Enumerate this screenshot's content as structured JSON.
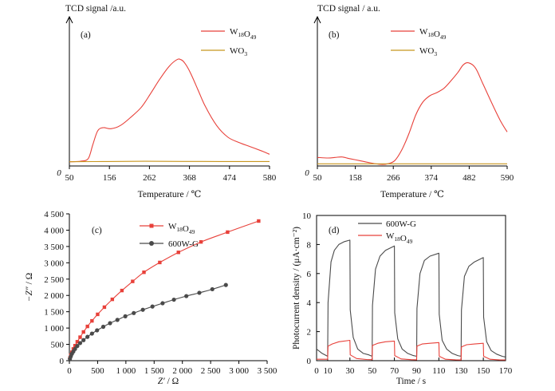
{
  "chart_data": [
    {
      "panel": "(a)",
      "type": "line",
      "y_axis_title": "TCD signal /a.u.",
      "xlabel": "Temperature / ℃",
      "y_origin_label": "0",
      "x_ticks": [
        "50",
        "156",
        "262",
        "368",
        "474",
        "580"
      ],
      "xlim": [
        50,
        580
      ],
      "ylim": [
        0,
        1
      ],
      "y_values_note": "relative",
      "legend": [
        {
          "base": "W",
          "sub1": "18",
          "mid": "O",
          "sub2": "49"
        },
        {
          "base": "WO",
          "sub1": "3",
          "mid": "",
          "sub2": ""
        }
      ],
      "colors": [
        "#e8413a",
        "#c8961e"
      ],
      "series": [
        {
          "name": "W18O49",
          "x": [
            50,
            80,
            100,
            112,
            125,
            140,
            160,
            185,
            210,
            240,
            265,
            290,
            315,
            335,
            345,
            355,
            370,
            390,
            410,
            440,
            470,
            500,
            530,
            560,
            580
          ],
          "y": [
            0.04,
            0.045,
            0.07,
            0.2,
            0.33,
            0.36,
            0.35,
            0.38,
            0.45,
            0.55,
            0.68,
            0.82,
            0.94,
            1.0,
            1.0,
            0.97,
            0.88,
            0.72,
            0.56,
            0.38,
            0.27,
            0.22,
            0.18,
            0.14,
            0.11
          ]
        },
        {
          "name": "WO3",
          "x": [
            50,
            150,
            250,
            350,
            450,
            580
          ],
          "y": [
            0.04,
            0.042,
            0.044,
            0.043,
            0.042,
            0.042
          ]
        }
      ]
    },
    {
      "panel": "(b)",
      "type": "line",
      "y_axis_title": "TCD signal / a.u.",
      "xlabel": "Temperature / ℃",
      "y_origin_label": "0",
      "x_ticks": [
        "50",
        "158",
        "266",
        "374",
        "482",
        "590"
      ],
      "xlim": [
        50,
        590
      ],
      "ylim": [
        0,
        1
      ],
      "y_values_note": "relative",
      "legend": [
        {
          "base": "W",
          "sub1": "18",
          "mid": "O",
          "sub2": "49"
        },
        {
          "base": "WO",
          "sub1": "3",
          "mid": "",
          "sub2": ""
        }
      ],
      "colors": [
        "#e8413a",
        "#c8961e"
      ],
      "series": [
        {
          "name": "W18O49",
          "x": [
            50,
            80,
            100,
            120,
            140,
            170,
            200,
            230,
            250,
            270,
            290,
            310,
            330,
            350,
            370,
            390,
            410,
            430,
            450,
            465,
            480,
            500,
            520,
            545,
            570,
            590
          ],
          "y": [
            0.08,
            0.075,
            0.08,
            0.085,
            0.07,
            0.05,
            0.03,
            0.015,
            0.02,
            0.05,
            0.15,
            0.3,
            0.48,
            0.6,
            0.66,
            0.69,
            0.73,
            0.8,
            0.88,
            0.95,
            0.97,
            0.92,
            0.78,
            0.6,
            0.43,
            0.32
          ]
        },
        {
          "name": "WO3",
          "x": [
            50,
            150,
            250,
            350,
            450,
            590
          ],
          "y": [
            0.02,
            0.02,
            0.02,
            0.02,
            0.02,
            0.02
          ]
        }
      ]
    },
    {
      "panel": "(c)",
      "type": "scatter",
      "ylabel_prefix": "−Z″",
      "ylabel_suffix": " / Ω",
      "xlabel_prefix": "Z′",
      "xlabel_suffix": " / Ω",
      "x_ticks": [
        "0",
        "500",
        "1 000",
        "1 500",
        "2 000",
        "2 500",
        "3 000",
        "3 500"
      ],
      "x_tick_values": [
        0,
        500,
        1000,
        1500,
        2000,
        2500,
        3000,
        3500
      ],
      "y_ticks": [
        "0",
        "500",
        "1 000",
        "1 500",
        "2 000",
        "2 500",
        "3 000",
        "3 500",
        "4 000",
        "4 500"
      ],
      "y_tick_values": [
        0,
        500,
        1000,
        1500,
        2000,
        2500,
        3000,
        3500,
        4000,
        4500
      ],
      "xlim": [
        0,
        3500
      ],
      "ylim": [
        0,
        4500
      ],
      "legend": [
        {
          "base": "W",
          "sub1": "18",
          "mid": "O",
          "sub2": "49"
        },
        {
          "base": "600W-G",
          "sub1": "",
          "mid": "",
          "sub2": ""
        }
      ],
      "colors": [
        "#e8413a",
        "#4a4a4a"
      ],
      "series": [
        {
          "name": "W18O49",
          "marker": "square",
          "x": [
            10,
            25,
            45,
            70,
            100,
            140,
            190,
            250,
            320,
            400,
            500,
            620,
            760,
            930,
            1120,
            1320,
            1600,
            1930,
            2330,
            2800,
            3350
          ],
          "y": [
            80,
            170,
            260,
            360,
            460,
            580,
            720,
            880,
            1050,
            1220,
            1420,
            1640,
            1880,
            2150,
            2430,
            2710,
            3010,
            3320,
            3640,
            3940,
            4280
          ]
        },
        {
          "name": "600W-G",
          "marker": "circle",
          "x": [
            10,
            25,
            45,
            70,
            100,
            140,
            190,
            250,
            320,
            400,
            490,
            600,
            720,
            850,
            990,
            1140,
            1300,
            1470,
            1650,
            1850,
            2070,
            2300,
            2530,
            2770
          ],
          "y": [
            60,
            130,
            210,
            280,
            360,
            450,
            540,
            630,
            730,
            830,
            930,
            1040,
            1150,
            1250,
            1360,
            1460,
            1560,
            1660,
            1760,
            1870,
            1980,
            2080,
            2190,
            2320
          ]
        }
      ]
    },
    {
      "panel": "(d)",
      "type": "line",
      "ylabel": "Photocurrent density / (μA·cm⁻²)",
      "xlabel": "Time / s",
      "x_ticks": [
        "0",
        "10",
        "30",
        "50",
        "70",
        "90",
        "110",
        "130",
        "150",
        "170"
      ],
      "x_tick_values": [
        0,
        10,
        30,
        50,
        70,
        90,
        110,
        130,
        150,
        170
      ],
      "y_ticks": [
        "0",
        "2",
        "4",
        "6",
        "8",
        "10"
      ],
      "y_tick_values": [
        0,
        2,
        4,
        6,
        8,
        10
      ],
      "xlim": [
        0,
        170
      ],
      "ylim": [
        0,
        10
      ],
      "legend": [
        {
          "base": "600W-G",
          "sub1": "",
          "mid": "",
          "sub2": ""
        },
        {
          "base": "W",
          "sub1": "18",
          "mid": "O",
          "sub2": "49"
        }
      ],
      "colors": [
        "#4a4a4a",
        "#e8413a"
      ],
      "series": [
        {
          "name": "600W-G",
          "x": [
            0,
            5,
            10,
            10.3,
            13,
            16,
            20,
            25,
            30,
            30.3,
            33,
            37,
            42,
            47,
            50,
            50.3,
            53,
            57,
            62,
            70,
            70.3,
            73,
            77,
            82,
            87,
            90,
            90.3,
            93,
            97,
            102,
            110,
            110.3,
            113,
            117,
            122,
            127,
            130,
            130.3,
            133,
            137,
            142,
            150,
            150.3,
            153,
            157,
            162,
            167,
            170
          ],
          "y": [
            0.8,
            0.5,
            0.3,
            4.0,
            6.8,
            7.6,
            8.0,
            8.2,
            8.3,
            3.5,
            1.6,
            0.8,
            0.5,
            0.4,
            0.3,
            3.8,
            6.3,
            7.2,
            7.6,
            7.9,
            3.3,
            1.5,
            0.8,
            0.5,
            0.35,
            0.3,
            3.6,
            6.0,
            6.9,
            7.2,
            7.4,
            3.2,
            1.4,
            0.8,
            0.5,
            0.35,
            0.3,
            3.5,
            5.8,
            6.5,
            6.8,
            7.1,
            3.0,
            1.3,
            0.7,
            0.45,
            0.3,
            0.25
          ]
        },
        {
          "name": "W18O49",
          "x": [
            0,
            10,
            10.3,
            14,
            20,
            30,
            30.3,
            36,
            45,
            50,
            50.3,
            55,
            62,
            70,
            70.3,
            76,
            85,
            90,
            90.3,
            95,
            102,
            110,
            110.3,
            116,
            125,
            130,
            130.3,
            135,
            142,
            150,
            150.3,
            156,
            165,
            170
          ],
          "y": [
            0.1,
            0.1,
            1.0,
            1.15,
            1.3,
            1.4,
            0.4,
            0.15,
            0.08,
            0.07,
            1.05,
            1.2,
            1.3,
            1.35,
            0.35,
            0.12,
            0.07,
            0.06,
            1.0,
            1.15,
            1.2,
            1.25,
            0.3,
            0.1,
            0.06,
            0.05,
            0.95,
            1.1,
            1.15,
            1.2,
            0.3,
            0.1,
            0.05,
            0.05
          ]
        }
      ]
    }
  ]
}
